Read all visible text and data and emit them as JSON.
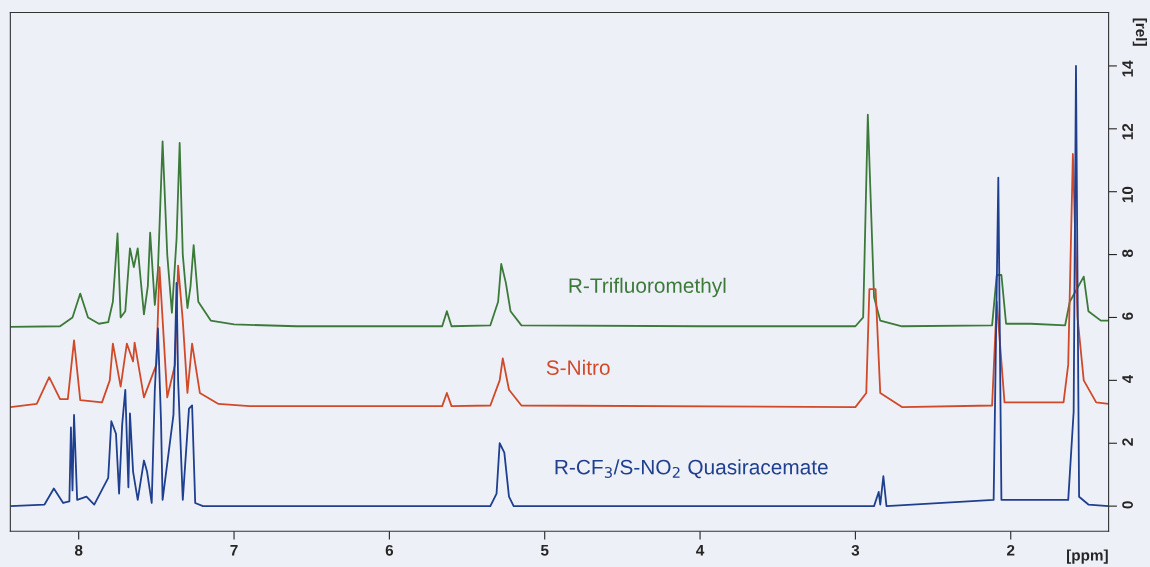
{
  "chart_data": {
    "type": "line",
    "xlabel": "[ppm]",
    "ylabel": "[rel]",
    "xlim": [
      8.44,
      1.37
    ],
    "xticks": [
      8,
      7,
      6,
      5,
      4,
      3,
      2
    ],
    "ylim": [
      -0.8,
      15.7
    ],
    "yticks": [
      0,
      2,
      4,
      6,
      8,
      10,
      12,
      14
    ],
    "grid": false,
    "legend": false,
    "line_style": "solid",
    "marker": "none",
    "series": [
      {
        "name": "R-Trifluoromethyl",
        "color": "#3c7a3a",
        "x": [
          8.44,
          8.12,
          8.04,
          7.99,
          7.94,
          7.87,
          7.81,
          7.78,
          7.75,
          7.73,
          7.7,
          7.67,
          7.645,
          7.62,
          7.58,
          7.555,
          7.54,
          7.51,
          7.49,
          7.46,
          7.43,
          7.4,
          7.37,
          7.35,
          7.33,
          7.3,
          7.28,
          7.26,
          7.23,
          7.15,
          7.0,
          6.6,
          5.66,
          5.63,
          5.6,
          5.35,
          5.3,
          5.28,
          5.25,
          5.22,
          5.15,
          4.0,
          3.0,
          2.95,
          2.92,
          2.88,
          2.84,
          2.7,
          2.12,
          2.09,
          2.06,
          2.03,
          1.87,
          1.65,
          1.62,
          1.61,
          1.55,
          1.53,
          1.5,
          1.42,
          1.37
        ],
        "values": [
          5.7,
          5.72,
          6.0,
          6.76,
          6.0,
          5.8,
          5.85,
          6.5,
          8.67,
          6.0,
          6.2,
          8.2,
          7.6,
          8.2,
          6.1,
          7.0,
          8.7,
          6.4,
          7.5,
          11.6,
          8.0,
          6.15,
          8.5,
          11.55,
          8.0,
          6.3,
          7.0,
          8.3,
          6.5,
          5.9,
          5.78,
          5.72,
          5.72,
          6.2,
          5.72,
          5.75,
          6.5,
          7.7,
          7.1,
          6.2,
          5.75,
          5.72,
          5.72,
          6.0,
          12.45,
          6.65,
          5.9,
          5.72,
          5.75,
          7.35,
          7.35,
          5.8,
          5.8,
          5.75,
          6.5,
          null,
          null,
          7.3,
          6.2,
          5.9,
          5.9
        ]
      },
      {
        "name": "S-Nitro",
        "color": "#d04a2a",
        "x": [
          8.44,
          8.27,
          8.19,
          8.12,
          8.07,
          8.03,
          7.99,
          7.85,
          7.8,
          7.78,
          7.73,
          7.69,
          7.65,
          7.64,
          7.58,
          7.5,
          7.48,
          7.43,
          7.38,
          7.36,
          7.33,
          7.3,
          7.27,
          7.22,
          7.1,
          6.9,
          5.66,
          5.63,
          5.6,
          5.35,
          5.29,
          5.27,
          5.23,
          5.15,
          3.0,
          2.93,
          2.91,
          2.9,
          2.885,
          2.87,
          2.84,
          2.7,
          2.12,
          2.09,
          2.07,
          2.04,
          1.66,
          1.63,
          1.6,
          1.57,
          1.53,
          1.45,
          1.37
        ],
        "values": [
          3.15,
          3.25,
          4.1,
          3.4,
          3.4,
          5.27,
          3.37,
          3.3,
          4.0,
          5.17,
          3.8,
          5.17,
          4.6,
          5.2,
          3.46,
          4.5,
          7.6,
          3.46,
          4.5,
          7.65,
          5.9,
          3.6,
          5.17,
          3.6,
          3.25,
          3.18,
          3.18,
          3.6,
          3.18,
          3.2,
          4.0,
          4.7,
          3.7,
          3.2,
          3.15,
          3.6,
          6.9,
          null,
          null,
          6.9,
          3.6,
          3.15,
          3.2,
          6.5,
          null,
          3.3,
          3.3,
          4.5,
          11.2,
          6.0,
          4.0,
          3.3,
          3.25
        ]
      },
      {
        "name": "R-CF$_{3}$/S-NO$_{2}$ Quasiracemate",
        "color": "#1f3f8f",
        "x": [
          8.44,
          8.22,
          8.16,
          8.1,
          8.06,
          8.05,
          8.04,
          8.03,
          8.01,
          7.95,
          7.9,
          7.81,
          7.79,
          7.76,
          7.74,
          7.72,
          7.7,
          7.68,
          7.67,
          7.65,
          7.62,
          7.58,
          7.56,
          7.53,
          7.51,
          7.49,
          7.47,
          7.46,
          7.39,
          7.37,
          7.36,
          7.33,
          7.29,
          7.27,
          7.25,
          7.2,
          5.35,
          5.31,
          5.29,
          5.26,
          5.23,
          5.2,
          2.88,
          2.85,
          2.84,
          2.82,
          2.8,
          2.11,
          2.08,
          2.06,
          1.63,
          1.61,
          1.595,
          1.58,
          1.56,
          1.5,
          1.37
        ],
        "values": [
          0,
          0.05,
          0.56,
          0.1,
          0.15,
          2.5,
          0.5,
          2.9,
          0.2,
          0.3,
          0.05,
          0.9,
          2.7,
          2.3,
          0.4,
          2.6,
          3.7,
          0.6,
          2.95,
          1.1,
          0.2,
          1.45,
          1.1,
          0.1,
          3.7,
          5.65,
          2.7,
          0.2,
          2.9,
          7.1,
          4.0,
          0.2,
          3.1,
          3.2,
          0.1,
          0,
          0,
          0.4,
          2.0,
          1.7,
          0.3,
          0,
          0,
          0.45,
          0.05,
          0.95,
          0,
          0.2,
          10.45,
          0.2,
          0.2,
          null,
          3.0,
          14.0,
          0.3,
          0.05,
          0
        ]
      }
    ]
  }
}
